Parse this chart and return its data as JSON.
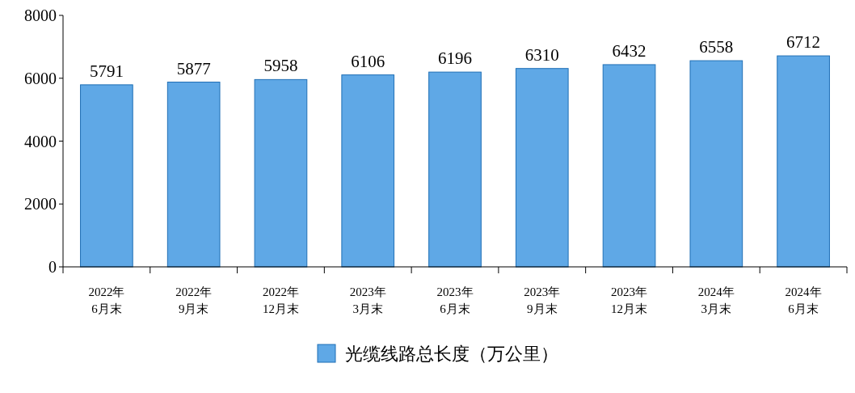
{
  "chart_data": {
    "type": "bar",
    "categories": [
      "2022年\n6月末",
      "2022年\n9月末",
      "2022年\n12月末",
      "2023年\n3月末",
      "2023年\n6月末",
      "2023年\n9月末",
      "2023年\n12月末",
      "2024年\n3月末",
      "2024年\n6月末"
    ],
    "series": [
      {
        "name": "光缆线路总长度（万公里）",
        "color": "#5fa8e6",
        "values": [
          5791,
          5877,
          5958,
          6106,
          6196,
          6310,
          6432,
          6558,
          6712
        ]
      }
    ],
    "ylim": [
      0,
      8000
    ],
    "yticks": [
      0,
      2000,
      4000,
      6000,
      8000
    ],
    "data_labels": true,
    "grid": false,
    "legend": "bottom"
  }
}
